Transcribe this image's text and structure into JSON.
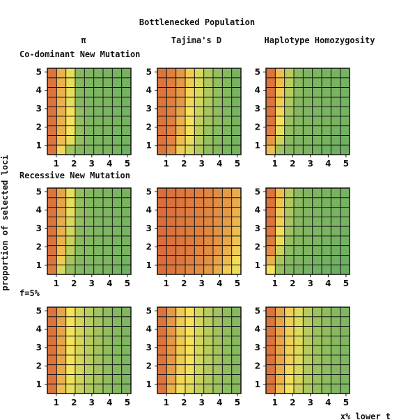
{
  "figure": {
    "title": "Bottlenecked Population",
    "column_headers": [
      "π",
      "Tajima's D",
      "Haplotype  Homozygosity"
    ],
    "row_headers": [
      "Co-dominant New Mutation",
      "Recessive New Mutation",
      "f=5%"
    ],
    "y_axis_label": "proportion of selected loci",
    "x_axis_label": "x% lower t"
  },
  "chart_data": {
    "type": "heatmap",
    "x_ticks": [
      "1",
      "2",
      "3",
      "4",
      "5"
    ],
    "y_ticks": [
      "1",
      "2",
      "3",
      "4",
      "5"
    ],
    "xlim": [
      0.5,
      5.2
    ],
    "ylim": [
      0.5,
      5.2
    ],
    "grid": true,
    "cells_per_axis": 9,
    "colors": {
      "low": "#d9683a",
      "mid": "#f5e25a",
      "high": "#6aae62",
      "grid": "#111111"
    },
    "panels": [
      {
        "row": "Co-dominant New Mutation",
        "column": "π",
        "values": [
          [
            0.05,
            0.3,
            0.55,
            0.9,
            0.92,
            0.93,
            0.94,
            0.95,
            0.96
          ],
          [
            0.05,
            0.3,
            0.55,
            0.9,
            0.92,
            0.93,
            0.94,
            0.95,
            0.96
          ],
          [
            0.05,
            0.3,
            0.55,
            0.9,
            0.92,
            0.93,
            0.94,
            0.95,
            0.96
          ],
          [
            0.05,
            0.3,
            0.55,
            0.9,
            0.92,
            0.93,
            0.94,
            0.95,
            0.96
          ],
          [
            0.05,
            0.3,
            0.5,
            0.85,
            0.92,
            0.93,
            0.94,
            0.95,
            0.96
          ],
          [
            0.05,
            0.3,
            0.5,
            0.85,
            0.92,
            0.93,
            0.94,
            0.95,
            0.96
          ],
          [
            0.05,
            0.3,
            0.5,
            0.85,
            0.92,
            0.93,
            0.94,
            0.95,
            0.96
          ],
          [
            0.05,
            0.35,
            0.55,
            0.85,
            0.92,
            0.93,
            0.94,
            0.95,
            0.96
          ],
          [
            0.05,
            0.45,
            0.8,
            0.9,
            0.92,
            0.93,
            0.94,
            0.95,
            0.98
          ]
        ]
      },
      {
        "row": "Co-dominant New Mutation",
        "column": "Tajima's D",
        "values": [
          [
            0.05,
            0.1,
            0.2,
            0.4,
            0.6,
            0.75,
            0.85,
            0.9,
            0.95
          ],
          [
            0.05,
            0.1,
            0.2,
            0.4,
            0.6,
            0.75,
            0.85,
            0.9,
            0.95
          ],
          [
            0.05,
            0.1,
            0.2,
            0.45,
            0.6,
            0.75,
            0.85,
            0.9,
            0.95
          ],
          [
            0.05,
            0.1,
            0.2,
            0.45,
            0.62,
            0.75,
            0.85,
            0.9,
            0.95
          ],
          [
            0.05,
            0.1,
            0.25,
            0.5,
            0.65,
            0.78,
            0.86,
            0.9,
            0.95
          ],
          [
            0.05,
            0.1,
            0.3,
            0.5,
            0.68,
            0.8,
            0.87,
            0.9,
            0.95
          ],
          [
            0.05,
            0.1,
            0.3,
            0.52,
            0.7,
            0.82,
            0.88,
            0.92,
            0.95
          ],
          [
            0.05,
            0.12,
            0.35,
            0.55,
            0.72,
            0.84,
            0.9,
            0.92,
            0.95
          ],
          [
            0.05,
            0.15,
            0.4,
            0.6,
            0.75,
            0.86,
            0.9,
            0.93,
            0.95
          ]
        ]
      },
      {
        "row": "Co-dominant New Mutation",
        "column": "Haplotype  Homozygosity",
        "values": [
          [
            0.05,
            0.35,
            0.72,
            0.88,
            0.92,
            0.93,
            0.94,
            0.95,
            0.96
          ],
          [
            0.05,
            0.35,
            0.7,
            0.88,
            0.92,
            0.93,
            0.94,
            0.95,
            0.96
          ],
          [
            0.05,
            0.4,
            0.72,
            0.88,
            0.92,
            0.93,
            0.94,
            0.95,
            0.96
          ],
          [
            0.05,
            0.4,
            0.75,
            0.9,
            0.92,
            0.93,
            0.94,
            0.95,
            0.96
          ],
          [
            0.05,
            0.45,
            0.78,
            0.9,
            0.92,
            0.93,
            0.94,
            0.95,
            0.96
          ],
          [
            0.06,
            0.5,
            0.82,
            0.9,
            0.92,
            0.93,
            0.94,
            0.95,
            0.96
          ],
          [
            0.1,
            0.55,
            0.85,
            0.9,
            0.92,
            0.93,
            0.94,
            0.96,
            0.97
          ],
          [
            0.2,
            0.65,
            0.88,
            0.92,
            0.93,
            0.94,
            0.96,
            0.97,
            0.98
          ],
          [
            0.35,
            0.8,
            0.9,
            0.92,
            0.94,
            0.96,
            0.97,
            0.98,
            0.99
          ]
        ]
      },
      {
        "row": "Recessive New Mutation",
        "column": "π",
        "values": [
          [
            0.05,
            0.25,
            0.55,
            0.85,
            0.9,
            0.92,
            0.93,
            0.94,
            0.95
          ],
          [
            0.05,
            0.25,
            0.55,
            0.85,
            0.9,
            0.92,
            0.93,
            0.94,
            0.95
          ],
          [
            0.05,
            0.25,
            0.55,
            0.85,
            0.9,
            0.92,
            0.93,
            0.94,
            0.95
          ],
          [
            0.05,
            0.28,
            0.6,
            0.85,
            0.9,
            0.92,
            0.93,
            0.94,
            0.95
          ],
          [
            0.05,
            0.3,
            0.62,
            0.88,
            0.9,
            0.92,
            0.93,
            0.94,
            0.95
          ],
          [
            0.05,
            0.3,
            0.65,
            0.88,
            0.9,
            0.92,
            0.93,
            0.94,
            0.95
          ],
          [
            0.05,
            0.35,
            0.7,
            0.88,
            0.9,
            0.92,
            0.93,
            0.94,
            0.95
          ],
          [
            0.05,
            0.4,
            0.78,
            0.9,
            0.91,
            0.92,
            0.93,
            0.94,
            0.96
          ],
          [
            0.08,
            0.6,
            0.85,
            0.9,
            0.92,
            0.93,
            0.94,
            0.95,
            0.98
          ]
        ]
      },
      {
        "row": "Recessive New Mutation",
        "column": "Tajima's D",
        "values": [
          [
            0.02,
            0.04,
            0.06,
            0.08,
            0.1,
            0.12,
            0.15,
            0.2,
            0.28
          ],
          [
            0.02,
            0.04,
            0.06,
            0.08,
            0.1,
            0.12,
            0.15,
            0.2,
            0.28
          ],
          [
            0.02,
            0.04,
            0.06,
            0.08,
            0.1,
            0.12,
            0.15,
            0.2,
            0.3
          ],
          [
            0.02,
            0.04,
            0.06,
            0.08,
            0.1,
            0.12,
            0.16,
            0.22,
            0.32
          ],
          [
            0.02,
            0.04,
            0.06,
            0.08,
            0.1,
            0.13,
            0.17,
            0.24,
            0.35
          ],
          [
            0.02,
            0.04,
            0.06,
            0.08,
            0.1,
            0.14,
            0.18,
            0.26,
            0.38
          ],
          [
            0.02,
            0.04,
            0.06,
            0.08,
            0.12,
            0.15,
            0.2,
            0.3,
            0.42
          ],
          [
            0.02,
            0.04,
            0.06,
            0.1,
            0.13,
            0.17,
            0.24,
            0.34,
            0.48
          ],
          [
            0.02,
            0.05,
            0.08,
            0.12,
            0.15,
            0.2,
            0.28,
            0.4,
            0.55
          ]
        ]
      },
      {
        "row": "Recessive New Mutation",
        "column": "Haplotype  Homozygosity",
        "values": [
          [
            0.05,
            0.35,
            0.72,
            0.88,
            0.92,
            0.93,
            0.94,
            0.95,
            0.96
          ],
          [
            0.05,
            0.38,
            0.74,
            0.88,
            0.92,
            0.93,
            0.94,
            0.95,
            0.96
          ],
          [
            0.05,
            0.4,
            0.76,
            0.9,
            0.92,
            0.93,
            0.94,
            0.95,
            0.96
          ],
          [
            0.05,
            0.42,
            0.78,
            0.9,
            0.92,
            0.93,
            0.94,
            0.95,
            0.96
          ],
          [
            0.06,
            0.48,
            0.8,
            0.9,
            0.92,
            0.93,
            0.94,
            0.95,
            0.97
          ],
          [
            0.08,
            0.55,
            0.84,
            0.9,
            0.92,
            0.93,
            0.95,
            0.96,
            0.97
          ],
          [
            0.15,
            0.65,
            0.87,
            0.91,
            0.93,
            0.95,
            0.96,
            0.97,
            0.98
          ],
          [
            0.3,
            0.78,
            0.9,
            0.92,
            0.94,
            0.96,
            0.97,
            0.98,
            0.99
          ],
          [
            0.5,
            0.85,
            0.92,
            0.94,
            0.96,
            0.97,
            0.98,
            0.99,
            1.0
          ]
        ]
      },
      {
        "row": "f=5%",
        "column": "π",
        "values": [
          [
            0.05,
            0.25,
            0.5,
            0.62,
            0.72,
            0.8,
            0.86,
            0.9,
            0.92
          ],
          [
            0.05,
            0.25,
            0.5,
            0.62,
            0.72,
            0.8,
            0.86,
            0.9,
            0.92
          ],
          [
            0.05,
            0.25,
            0.5,
            0.62,
            0.72,
            0.8,
            0.86,
            0.9,
            0.92
          ],
          [
            0.05,
            0.25,
            0.5,
            0.62,
            0.72,
            0.8,
            0.86,
            0.9,
            0.92
          ],
          [
            0.05,
            0.25,
            0.5,
            0.62,
            0.72,
            0.8,
            0.86,
            0.9,
            0.92
          ],
          [
            0.05,
            0.25,
            0.5,
            0.62,
            0.72,
            0.8,
            0.86,
            0.9,
            0.92
          ],
          [
            0.05,
            0.28,
            0.5,
            0.62,
            0.72,
            0.8,
            0.86,
            0.9,
            0.92
          ],
          [
            0.05,
            0.3,
            0.52,
            0.64,
            0.74,
            0.8,
            0.86,
            0.9,
            0.92
          ],
          [
            0.05,
            0.35,
            0.55,
            0.66,
            0.75,
            0.82,
            0.87,
            0.9,
            0.93
          ]
        ]
      },
      {
        "row": "f=5%",
        "column": "Tajima's D",
        "values": [
          [
            0.05,
            0.2,
            0.4,
            0.5,
            0.62,
            0.72,
            0.8,
            0.86,
            0.9
          ],
          [
            0.05,
            0.2,
            0.4,
            0.5,
            0.62,
            0.72,
            0.8,
            0.86,
            0.9
          ],
          [
            0.05,
            0.2,
            0.4,
            0.5,
            0.62,
            0.72,
            0.8,
            0.86,
            0.9
          ],
          [
            0.05,
            0.2,
            0.4,
            0.5,
            0.62,
            0.72,
            0.8,
            0.86,
            0.9
          ],
          [
            0.05,
            0.2,
            0.4,
            0.5,
            0.62,
            0.72,
            0.8,
            0.86,
            0.9
          ],
          [
            0.05,
            0.2,
            0.4,
            0.5,
            0.62,
            0.72,
            0.8,
            0.86,
            0.9
          ],
          [
            0.05,
            0.22,
            0.42,
            0.52,
            0.64,
            0.74,
            0.8,
            0.86,
            0.9
          ],
          [
            0.05,
            0.25,
            0.45,
            0.55,
            0.66,
            0.75,
            0.82,
            0.86,
            0.9
          ],
          [
            0.05,
            0.3,
            0.48,
            0.58,
            0.68,
            0.76,
            0.82,
            0.87,
            0.9
          ]
        ]
      },
      {
        "row": "f=5%",
        "column": "Haplotype  Homozygosity",
        "values": [
          [
            0.05,
            0.25,
            0.42,
            0.58,
            0.72,
            0.82,
            0.86,
            0.9,
            0.92
          ],
          [
            0.05,
            0.25,
            0.42,
            0.58,
            0.72,
            0.82,
            0.86,
            0.9,
            0.92
          ],
          [
            0.05,
            0.25,
            0.42,
            0.58,
            0.72,
            0.82,
            0.86,
            0.9,
            0.92
          ],
          [
            0.05,
            0.25,
            0.42,
            0.58,
            0.72,
            0.82,
            0.86,
            0.9,
            0.92
          ],
          [
            0.05,
            0.25,
            0.42,
            0.58,
            0.72,
            0.82,
            0.86,
            0.9,
            0.92
          ],
          [
            0.05,
            0.25,
            0.42,
            0.58,
            0.72,
            0.82,
            0.86,
            0.9,
            0.92
          ],
          [
            0.05,
            0.28,
            0.45,
            0.6,
            0.74,
            0.82,
            0.87,
            0.9,
            0.92
          ],
          [
            0.05,
            0.3,
            0.48,
            0.62,
            0.75,
            0.83,
            0.87,
            0.9,
            0.93
          ],
          [
            0.05,
            0.35,
            0.5,
            0.65,
            0.76,
            0.84,
            0.88,
            0.91,
            0.93
          ]
        ]
      }
    ]
  }
}
